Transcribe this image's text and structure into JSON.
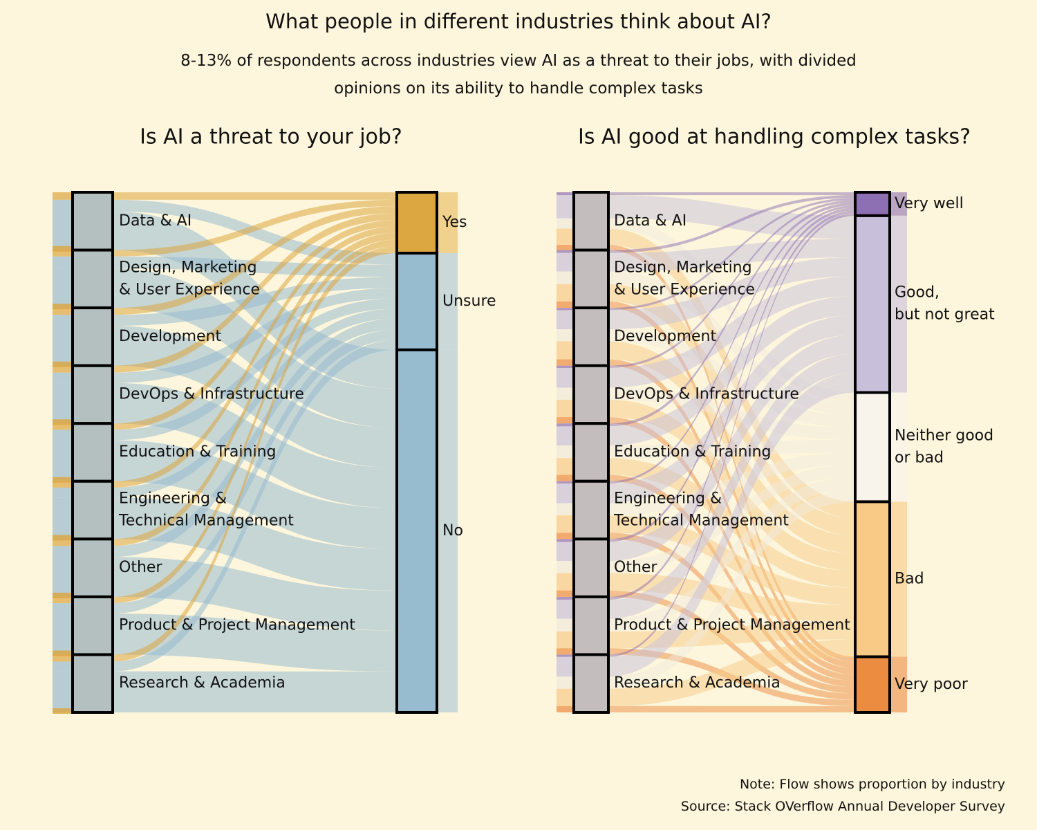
{
  "title": "What people in different industries think about AI?",
  "subtitle": "8-13% of respondents across industries view AI as a threat to their jobs, with divided opinions on its ability to handle complex tasks",
  "note": "Note: Flow shows proportion by industry",
  "source": "Source: Stack OVerflow Annual Developer Survey",
  "chart_data": [
    {
      "type": "sankey",
      "title": "Is AI a threat to your job?",
      "industries": [
        "Data & AI",
        "Design, Marketing\n& User Experience",
        "Development",
        "DevOps & Infrastructure",
        "Education & Training",
        "Engineering &\nTechnical Management",
        "Other",
        "Product & Project Management",
        "Research & Academia"
      ],
      "outcomes": [
        {
          "name": "Yes",
          "share": 0.117,
          "color": "#dca640"
        },
        {
          "name": "Unsure",
          "share": 0.186,
          "color": "#98bccf"
        },
        {
          "name": "No",
          "share": 0.697,
          "color": "#98bccf"
        }
      ],
      "flows": [
        [
          0.13,
          0.2,
          0.67
        ],
        [
          0.11,
          0.21,
          0.68
        ],
        [
          0.12,
          0.19,
          0.69
        ],
        [
          0.12,
          0.18,
          0.7
        ],
        [
          0.11,
          0.18,
          0.71
        ],
        [
          0.11,
          0.17,
          0.72
        ],
        [
          0.12,
          0.19,
          0.69
        ],
        [
          0.11,
          0.18,
          0.71
        ],
        [
          0.12,
          0.17,
          0.71
        ]
      ]
    },
    {
      "type": "sankey",
      "title": "Is AI good at handling complex tasks?",
      "industries": [
        "Data & AI",
        "Design, Marketing\n& User Experience",
        "Development",
        "DevOps & Infrastructure",
        "Education & Training",
        "Engineering &\nTechnical Management",
        "Other",
        "Product & Project Management",
        "Research & Academia"
      ],
      "outcomes": [
        {
          "name": "Very well",
          "share": 0.045,
          "color": "#8d6fb3"
        },
        {
          "name": "Good,\nbut not great",
          "share": 0.34,
          "color": "#c8c0da"
        },
        {
          "name": "Neither good\nor bad",
          "share": 0.21,
          "color": "#f8f4ec"
        },
        {
          "name": "Bad",
          "share": 0.298,
          "color": "#f8ca86"
        },
        {
          "name": "Very poor",
          "share": 0.107,
          "color": "#ec8c40"
        }
      ],
      "flows": [
        [
          0.05,
          0.4,
          0.18,
          0.28,
          0.09
        ],
        [
          0.05,
          0.32,
          0.22,
          0.3,
          0.11
        ],
        [
          0.04,
          0.33,
          0.21,
          0.31,
          0.11
        ],
        [
          0.04,
          0.34,
          0.21,
          0.3,
          0.11
        ],
        [
          0.05,
          0.33,
          0.22,
          0.29,
          0.11
        ],
        [
          0.04,
          0.34,
          0.21,
          0.3,
          0.11
        ],
        [
          0.05,
          0.33,
          0.21,
          0.3,
          0.11
        ],
        [
          0.05,
          0.33,
          0.22,
          0.29,
          0.11
        ],
        [
          0.04,
          0.34,
          0.21,
          0.3,
          0.11
        ]
      ]
    }
  ]
}
